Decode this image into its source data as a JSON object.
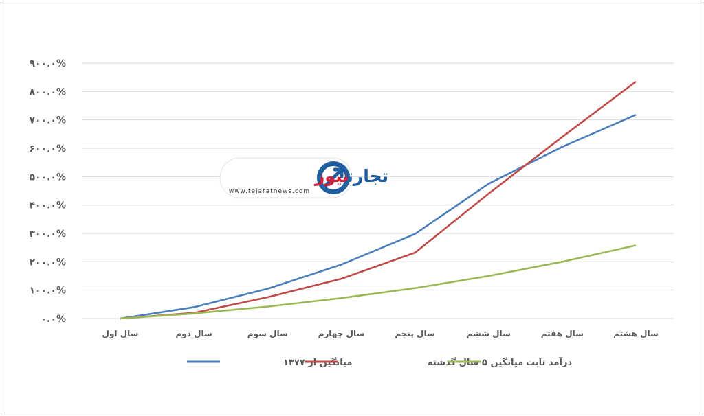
{
  "chart_data": {
    "type": "line",
    "categories": [
      "سال اول",
      "سال دوم",
      "سال سوم",
      "سال چهارم",
      "سال پنجم",
      "سال ششم",
      "سال هفتم",
      "سال هشتم"
    ],
    "y_ticks": [
      "۰.۰%",
      "۱۰۰.۰%",
      "۲۰۰.۰%",
      "۳۰۰.۰%",
      "۴۰۰.۰%",
      "۵۰۰.۰%",
      "۶۰۰.۰%",
      "۷۰۰.۰%",
      "۸۰۰.۰%",
      "۹۰۰.۰%"
    ],
    "ylim": [
      0,
      900
    ],
    "grid": true,
    "legend_position": "bottom",
    "series": [
      {
        "name": "میانگین از ۱۳۷۷",
        "color": "#4a7ebb",
        "values": [
          0,
          40,
          105,
          190,
          298,
          475,
          605,
          718
        ]
      },
      {
        "name": "میانگین ۵ سال گذشته",
        "color": "#be4b48",
        "values": [
          0,
          20,
          75,
          140,
          232,
          440,
          640,
          835
        ]
      },
      {
        "name": "درآمد ثابت",
        "color": "#98b954",
        "values": [
          0,
          18,
          42,
          72,
          107,
          150,
          200,
          258
        ]
      }
    ]
  },
  "watermark": {
    "title_part1": "تجارت",
    "title_part2": "نیوز",
    "url": "www.tejaratnews.com"
  }
}
